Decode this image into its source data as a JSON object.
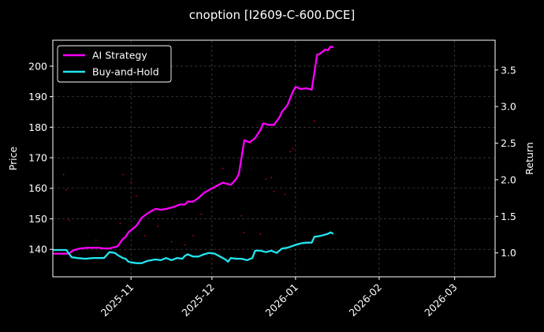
{
  "chart_data": {
    "type": "line",
    "title": "cnoption [I2609-C-600.DCE]",
    "xlabel": "",
    "ylabel": "Price",
    "ylabel_right": "Return",
    "x_range": [
      "2025-10-03",
      "2026-03-16"
    ],
    "ylim": [
      131,
      208.5
    ],
    "ylim_right": [
      0.673,
      3.907
    ],
    "x_ticks": [
      {
        "date": "2025-11-01",
        "label": "2025-11"
      },
      {
        "date": "2025-12-01",
        "label": "2025-12"
      },
      {
        "date": "2026-01-01",
        "label": "2026-01"
      },
      {
        "date": "2026-02-01",
        "label": "2026-02"
      },
      {
        "date": "2026-03-01",
        "label": "2026-03"
      }
    ],
    "y_ticks": [
      140,
      150,
      160,
      170,
      180,
      190,
      200
    ],
    "y_ticks_right": [
      1.0,
      1.5,
      2.0,
      2.5,
      3.0,
      3.5
    ],
    "grid": true,
    "legend_position": "top-left",
    "colors": {
      "ai_strategy": "#ff00ff",
      "buy_and_hold": "#22e5f0",
      "price_dots": "#b3003c",
      "grid": "#555555",
      "frame": "#ffffff"
    },
    "series": [
      {
        "name": "AI Strategy",
        "axis": "right",
        "color": "#ff00ff",
        "x": [
          "2025-10-03",
          "2025-10-06",
          "2025-10-09",
          "2025-10-10",
          "2025-10-11",
          "2025-10-13",
          "2025-10-16",
          "2025-10-20",
          "2025-10-22",
          "2025-10-24",
          "2025-10-27",
          "2025-10-29",
          "2025-10-30",
          "2025-10-31",
          "2025-11-01",
          "2025-11-03",
          "2025-11-05",
          "2025-11-06",
          "2025-11-08",
          "2025-11-10",
          "2025-11-12",
          "2025-11-14",
          "2025-11-17",
          "2025-11-19",
          "2025-11-21",
          "2025-11-22",
          "2025-11-24",
          "2025-11-26",
          "2025-11-28",
          "2025-12-01",
          "2025-12-03",
          "2025-12-05",
          "2025-12-08",
          "2025-12-10",
          "2025-12-11",
          "2025-12-13",
          "2025-12-15",
          "2025-12-17",
          "2025-12-19",
          "2025-12-20",
          "2025-12-22",
          "2025-12-24",
          "2025-12-26",
          "2025-12-27",
          "2025-12-29",
          "2025-12-31",
          "2026-01-01",
          "2026-01-03",
          "2026-01-05",
          "2026-01-07",
          "2026-01-09",
          "2026-01-10",
          "2026-01-12",
          "2026-01-13",
          "2026-01-14",
          "2026-01-15"
        ],
        "values": [
          0.99,
          0.99,
          0.99,
          1.02,
          1.04,
          1.06,
          1.07,
          1.07,
          1.06,
          1.06,
          1.09,
          1.19,
          1.22,
          1.28,
          1.31,
          1.37,
          1.48,
          1.51,
          1.56,
          1.6,
          1.59,
          1.6,
          1.63,
          1.66,
          1.66,
          1.7,
          1.7,
          1.75,
          1.82,
          1.88,
          1.92,
          1.96,
          1.93,
          2.01,
          2.08,
          2.54,
          2.51,
          2.57,
          2.68,
          2.77,
          2.75,
          2.75,
          2.85,
          2.93,
          3.02,
          3.2,
          3.27,
          3.24,
          3.25,
          3.23,
          3.71,
          3.72,
          3.78,
          3.77,
          3.82,
          3.81
        ]
      },
      {
        "name": "Buy-and-Hold",
        "axis": "right",
        "color": "#22e5f0",
        "x": [
          "2025-10-03",
          "2025-10-06",
          "2025-10-08",
          "2025-10-10",
          "2025-10-12",
          "2025-10-15",
          "2025-10-18",
          "2025-10-20",
          "2025-10-22",
          "2025-10-24",
          "2025-10-26",
          "2025-10-27",
          "2025-10-29",
          "2025-10-30",
          "2025-10-31",
          "2025-11-01",
          "2025-11-03",
          "2025-11-05",
          "2025-11-07",
          "2025-11-10",
          "2025-11-12",
          "2025-11-14",
          "2025-11-16",
          "2025-11-18",
          "2025-11-20",
          "2025-11-21",
          "2025-11-22",
          "2025-11-24",
          "2025-11-26",
          "2025-11-28",
          "2025-11-30",
          "2025-12-02",
          "2025-12-04",
          "2025-12-06",
          "2025-12-07",
          "2025-12-08",
          "2025-12-10",
          "2025-12-12",
          "2025-12-14",
          "2025-12-16",
          "2025-12-17",
          "2025-12-19",
          "2025-12-21",
          "2025-12-23",
          "2025-12-25",
          "2025-12-27",
          "2025-12-29",
          "2026-01-01",
          "2026-01-03",
          "2026-01-05",
          "2026-01-07",
          "2026-01-08",
          "2026-01-10",
          "2026-01-12",
          "2026-01-13",
          "2026-01-14",
          "2026-01-15"
        ],
        "values": [
          1.04,
          1.04,
          1.04,
          0.94,
          0.93,
          0.92,
          0.93,
          0.93,
          0.93,
          1.01,
          1.0,
          0.97,
          0.93,
          0.92,
          0.88,
          0.87,
          0.86,
          0.86,
          0.89,
          0.91,
          0.9,
          0.93,
          0.9,
          0.93,
          0.92,
          0.96,
          0.98,
          0.95,
          0.95,
          0.98,
          1.0,
          0.99,
          0.95,
          0.91,
          0.88,
          0.93,
          0.92,
          0.92,
          0.9,
          0.93,
          1.03,
          1.03,
          1.01,
          1.03,
          1.0,
          1.06,
          1.07,
          1.11,
          1.13,
          1.14,
          1.14,
          1.22,
          1.23,
          1.25,
          1.26,
          1.28,
          1.26
        ]
      },
      {
        "name": "Price",
        "axis": "left",
        "type": "scatter",
        "color": "#b3003c",
        "x": [
          "2025-10-07",
          "2025-10-08",
          "2025-10-09",
          "2025-10-19",
          "2025-10-28",
          "2025-10-29",
          "2025-11-01",
          "2025-11-03",
          "2025-11-06",
          "2025-11-11",
          "2025-11-16",
          "2025-11-21",
          "2025-11-24",
          "2025-11-27",
          "2025-12-05",
          "2025-12-12",
          "2025-12-13",
          "2025-12-19",
          "2025-12-21",
          "2025-12-23",
          "2025-12-24",
          "2025-12-28",
          "2025-12-30",
          "2025-12-31",
          "2026-01-08"
        ],
        "values": [
          164.5,
          159.5,
          149.5,
          143.0,
          148.5,
          164.5,
          162.0,
          157.5,
          144.5,
          147.5,
          142.5,
          141.5,
          144.5,
          151.5,
          166.5,
          151.0,
          145.5,
          145.0,
          163.0,
          163.5,
          159.0,
          158.0,
          172.0,
          173.0,
          182.0
        ]
      }
    ]
  }
}
